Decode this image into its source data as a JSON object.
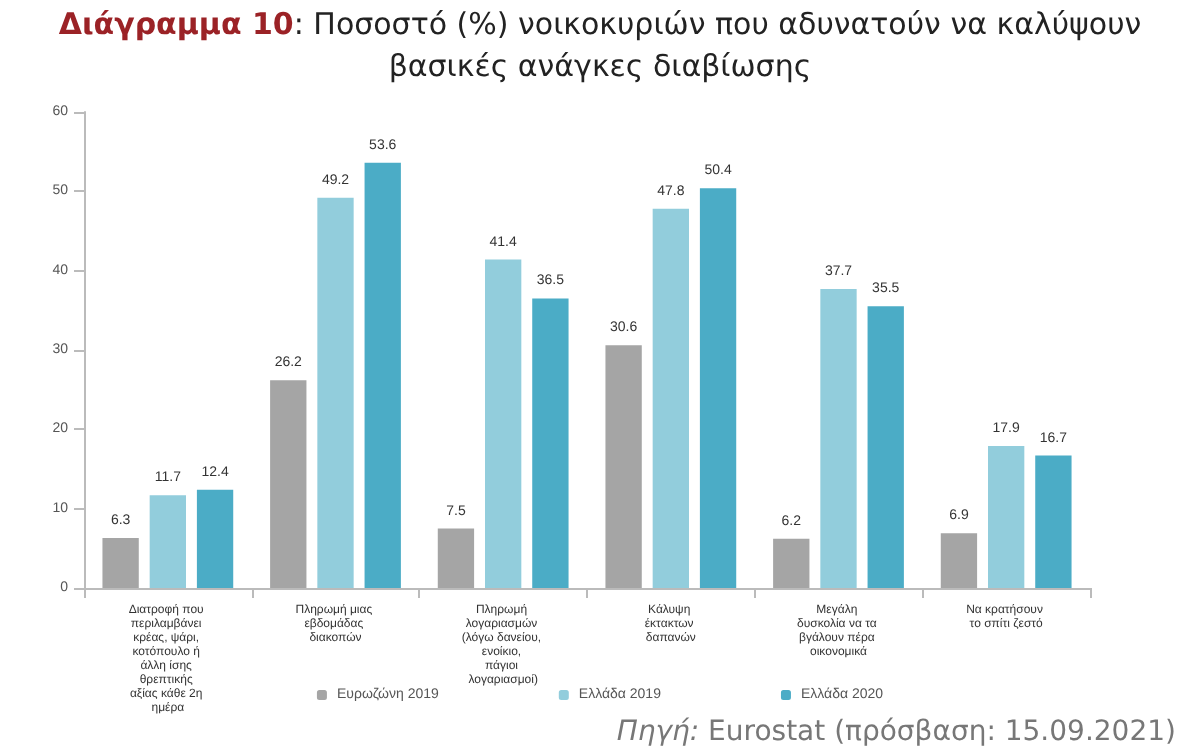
{
  "chart_data": {
    "type": "bar",
    "title": "Διάγραμμα 10: Ποσοστό (%) νοικοκυριών που αδυνατούν να καλύψουν βασικές ανάγκες διαβίωσης",
    "categories": [
      "Διατροφή που περιλαμβάνει κρέας, ψάρι, κοτόπουλο ή άλλη ίσης θρεπτικής αξίας κάθε 2η ημέρα",
      "Πληρωμή μιας εβδομάδας διακοπών",
      "Πληρωμή λογαριασμών (λόγω δανείου, ενοίκιο, πάγιοι λογαριασμοί)",
      "Κάλυψη έκτακτων δαπανών",
      "Μεγάλη δυσκολία να τα βγάλουν πέρα οικονομικά",
      "Να κρατήσουν το σπίτι ζεστό"
    ],
    "series": [
      {
        "name": "Ευρωζώνη 2019",
        "color": "#a5a5a5",
        "values": [
          6.3,
          26.2,
          7.5,
          30.6,
          6.2,
          6.9
        ]
      },
      {
        "name": "Ελλάδα 2019",
        "color": "#92cddc",
        "values": [
          11.7,
          49.2,
          41.4,
          47.8,
          37.7,
          17.9
        ]
      },
      {
        "name": "Ελλάδα 2020",
        "color": "#4bacc6",
        "values": [
          12.4,
          53.6,
          36.5,
          50.4,
          35.5,
          16.7
        ]
      }
    ],
    "ylim": [
      0,
      60
    ],
    "yticks": [
      0,
      10,
      20,
      30,
      40,
      50,
      60
    ],
    "grid": false,
    "data_labels": true,
    "legend": "bottom",
    "annotations": [
      "Πηγή: Eurostat (πρόσβαση: 15.09.2021)"
    ]
  }
}
